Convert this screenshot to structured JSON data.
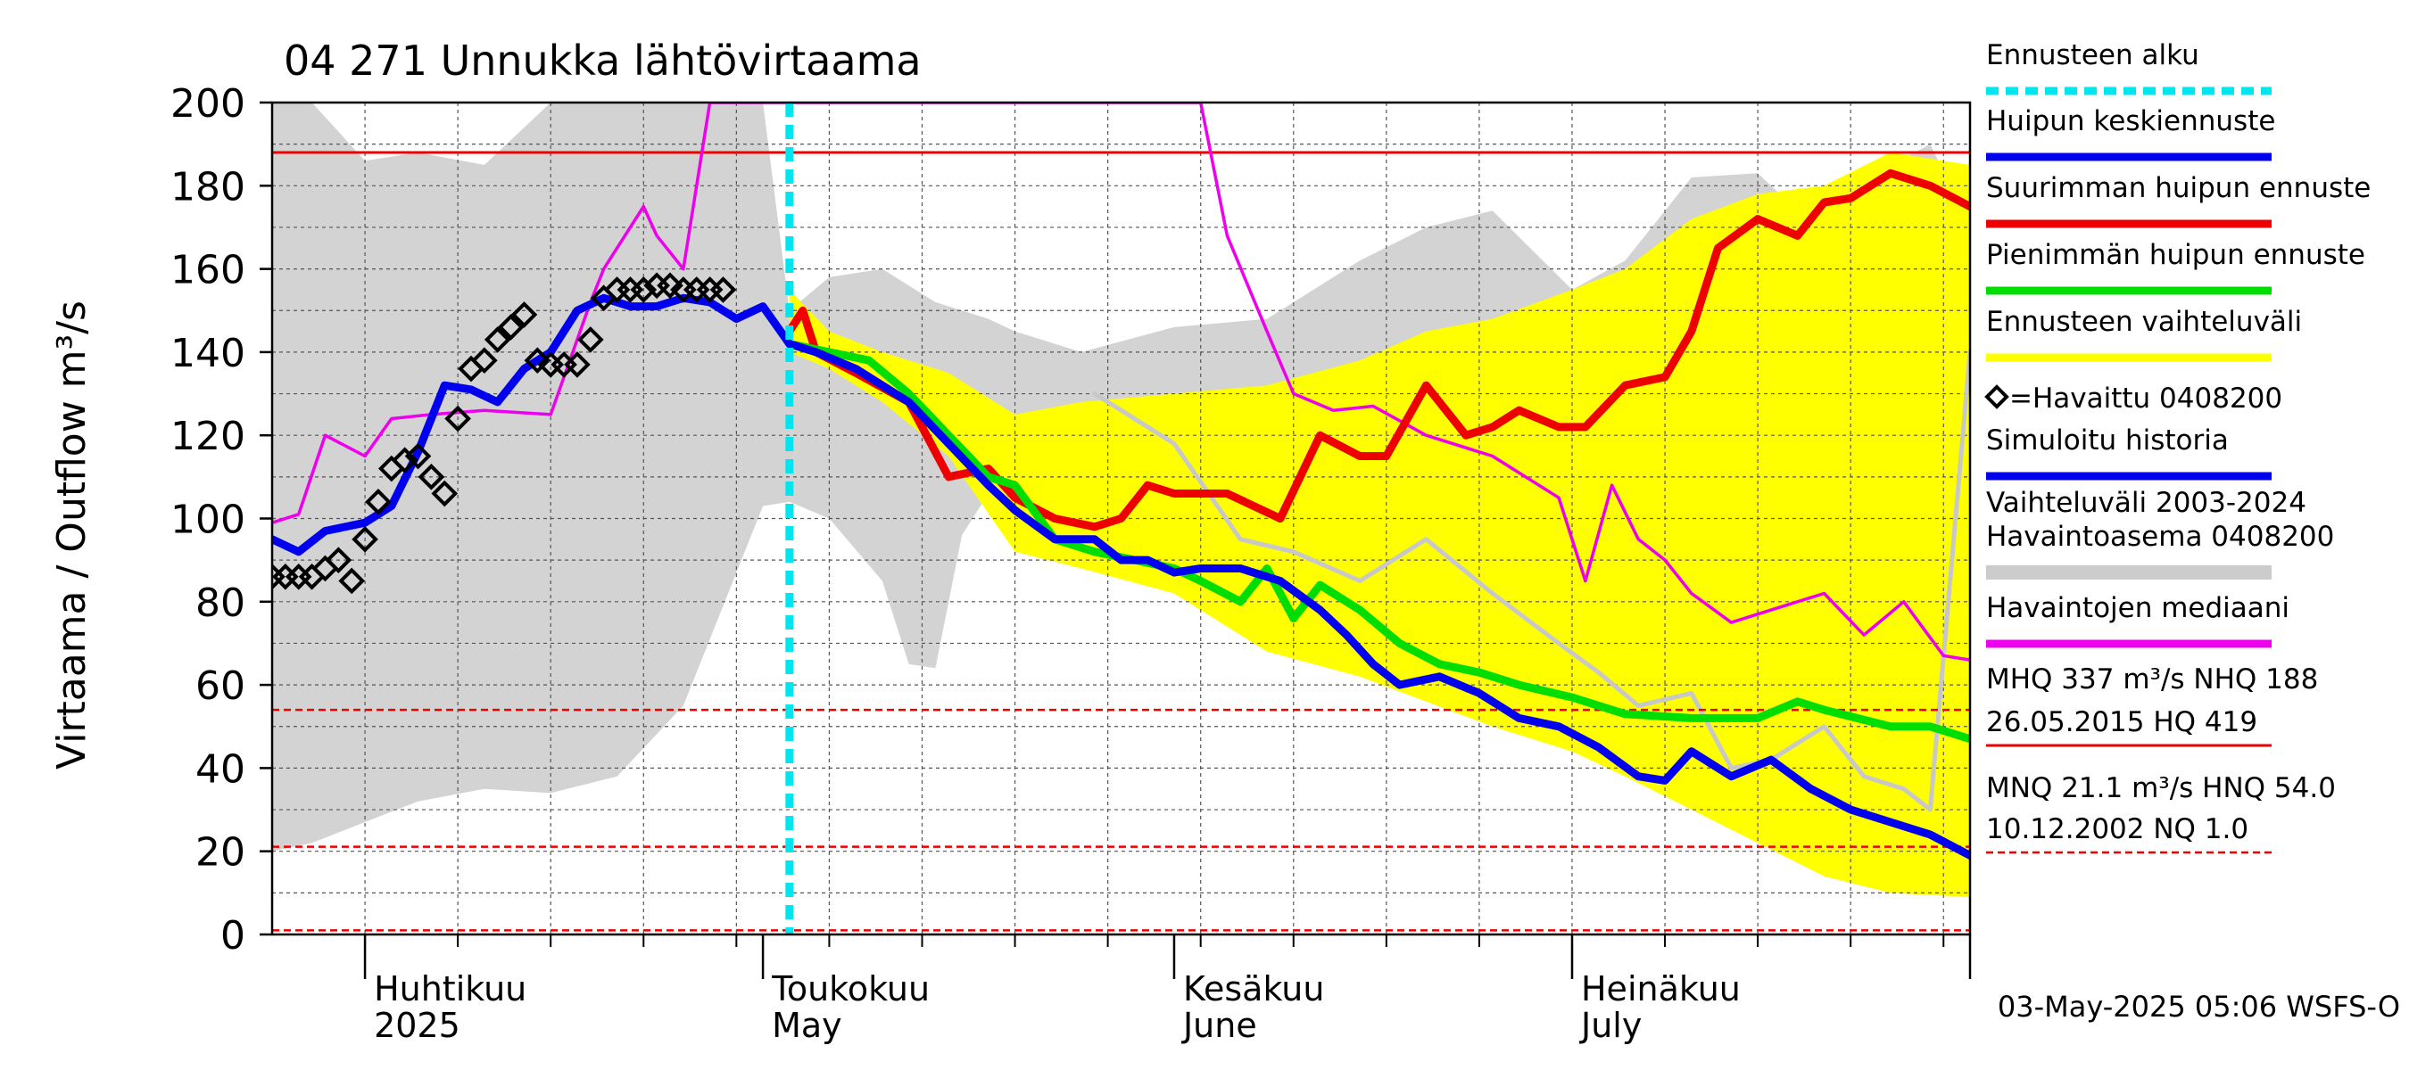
{
  "chart_data": {
    "type": "line",
    "title": "04 271 Unnukka lähtövirtaama",
    "ylabel": "Virtaama / Outflow   m³/s",
    "ylim": [
      0,
      200
    ],
    "yticks": [
      0,
      20,
      40,
      60,
      80,
      100,
      120,
      140,
      160,
      180,
      200
    ],
    "xlim": [
      "2025-03-25",
      "2025-07-31"
    ],
    "forecast_start": "2025-05-03",
    "month_labels": [
      {
        "fi": "Huhtikuu",
        "en": "2025",
        "date": "2025-04-01"
      },
      {
        "fi": "Toukokuu",
        "en": "May",
        "date": "2025-05-01"
      },
      {
        "fi": "Kesäkuu",
        "en": "June",
        "date": "2025-06-01"
      },
      {
        "fi": "Heinäkuu",
        "en": "July",
        "date": "2025-07-01"
      }
    ],
    "hlines": [
      {
        "value": 188,
        "style": "solid"
      },
      {
        "value": 54.0,
        "style": "dashed"
      },
      {
        "value": 21.1,
        "style": "dashed"
      },
      {
        "value": 1.0,
        "style": "dashed"
      }
    ],
    "legend": [
      {
        "label": "Ennusteen alku",
        "color": "#00e5ee",
        "style": "dashed"
      },
      {
        "label": "Huipun keskiennuste",
        "color": "#0000ee",
        "style": "solid"
      },
      {
        "label": "Suurimman huipun ennuste",
        "color": "#ee0000",
        "style": "solid"
      },
      {
        "label": "Pienimmän huipun ennuste",
        "color": "#00dd00",
        "style": "solid"
      },
      {
        "label": "Ennusteen vaihteluväli",
        "color": "#ffff00",
        "style": "solid"
      },
      {
        "label": "=Havaittu 0408200",
        "color": "#000000",
        "style": "marker"
      },
      {
        "label": "Simuloitu historia",
        "color": "#0000ee",
        "style": "solid"
      },
      {
        "label": "Vaihteluväli 2003-2024\n Havaintoasema 0408200",
        "color": "#cccccc",
        "style": "solid"
      },
      {
        "label": "Havaintojen mediaani",
        "color": "#ee00ee",
        "style": "solid"
      }
    ],
    "stats": {
      "line1": "MHQ  337 m³/s NHQ  188",
      "line2": "26.05.2015 HQ  419",
      "line3": "MNQ 21.1 m³/s HNQ 54.0",
      "line4": "10.12.2002 NQ  1.0"
    },
    "timestamp": "03-May-2025 05:06 WSFS-O",
    "series": {
      "hist_range": {
        "x": [
          "2025-03-25",
          "2025-03-28",
          "2025-04-01",
          "2025-04-05",
          "2025-04-10",
          "2025-04-15",
          "2025-04-20",
          "2025-04-25",
          "2025-05-01",
          "2025-05-03",
          "2025-05-06",
          "2025-05-10",
          "2025-05-12",
          "2025-05-14",
          "2025-05-16",
          "2025-05-18",
          "2025-05-20",
          "2025-05-25",
          "2025-06-01",
          "2025-06-08",
          "2025-06-15",
          "2025-06-20",
          "2025-06-25",
          "2025-07-01",
          "2025-07-05",
          "2025-07-10",
          "2025-07-15",
          "2025-07-18",
          "2025-07-20",
          "2025-07-25",
          "2025-07-28",
          "2025-07-31"
        ],
        "low": [
          20,
          22,
          27,
          32,
          35,
          34,
          38,
          55,
          103,
          104,
          100,
          85,
          65,
          64,
          96,
          106,
          110,
          106,
          90,
          76,
          62,
          60,
          63,
          50,
          44,
          36,
          40,
          36,
          28,
          25,
          24,
          44
        ],
        "high": [
          200,
          200,
          186,
          188,
          185,
          200,
          200,
          200,
          200,
          150,
          158,
          160,
          156,
          152,
          150,
          148,
          145,
          140,
          146,
          148,
          162,
          170,
          174,
          155,
          162,
          182,
          183,
          174,
          140,
          185,
          190,
          170
        ]
      },
      "median": {
        "x": [
          "2025-03-25",
          "2025-03-27",
          "2025-03-29",
          "2025-04-01",
          "2025-04-03",
          "2025-04-06",
          "2025-04-10",
          "2025-04-15",
          "2025-04-18",
          "2025-04-19",
          "2025-04-20",
          "2025-04-22",
          "2025-04-23",
          "2025-04-25",
          "2025-04-27",
          "2025-06-03",
          "2025-06-05",
          "2025-06-08",
          "2025-06-10",
          "2025-06-13",
          "2025-06-16",
          "2025-06-20",
          "2025-06-25",
          "2025-06-30",
          "2025-07-02",
          "2025-07-04",
          "2025-07-06",
          "2025-07-08",
          "2025-07-10",
          "2025-07-13",
          "2025-07-16",
          "2025-07-20",
          "2025-07-23",
          "2025-07-26",
          "2025-07-29",
          "2025-07-31"
        ],
        "y": [
          99,
          101,
          120,
          115,
          124,
          125,
          126,
          125,
          152,
          160,
          165,
          175,
          168,
          160,
          200,
          200,
          168,
          145,
          130,
          126,
          127,
          120,
          115,
          105,
          85,
          108,
          95,
          90,
          82,
          75,
          78,
          82,
          72,
          80,
          67,
          66
        ]
      },
      "simulated": {
        "x": [
          "2025-03-25",
          "2025-03-27",
          "2025-03-29",
          "2025-04-01",
          "2025-04-03",
          "2025-04-05",
          "2025-04-07",
          "2025-04-09",
          "2025-04-11",
          "2025-04-13",
          "2025-04-15",
          "2025-04-17",
          "2025-04-19",
          "2025-04-21",
          "2025-04-23",
          "2025-04-25",
          "2025-04-27",
          "2025-04-29",
          "2025-05-01",
          "2025-05-03"
        ],
        "y": [
          95,
          92,
          97,
          99,
          103,
          116,
          132,
          131,
          128,
          136,
          140,
          150,
          153,
          151,
          151,
          153,
          152,
          148,
          151,
          142
        ]
      },
      "observed": {
        "x": [
          "2025-03-25",
          "2025-03-26",
          "2025-03-27",
          "2025-03-28",
          "2025-03-29",
          "2025-03-30",
          "2025-03-31",
          "2025-04-01",
          "2025-04-02",
          "2025-04-03",
          "2025-04-04",
          "2025-04-05",
          "2025-04-06",
          "2025-04-07",
          "2025-04-08",
          "2025-04-09",
          "2025-04-10",
          "2025-04-11",
          "2025-04-12",
          "2025-04-13",
          "2025-04-14",
          "2025-04-15",
          "2025-04-16",
          "2025-04-17",
          "2025-04-18",
          "2025-04-19",
          "2025-04-20",
          "2025-04-21",
          "2025-04-22",
          "2025-04-23",
          "2025-04-24",
          "2025-04-25",
          "2025-04-26",
          "2025-04-27",
          "2025-04-28"
        ],
        "y": [
          86,
          86,
          86,
          86,
          88,
          90,
          85,
          95,
          104,
          112,
          114,
          115,
          110,
          106,
          124,
          136,
          138,
          143,
          146,
          149,
          138,
          137,
          137,
          137,
          143,
          153,
          155,
          155,
          155,
          156,
          156,
          155,
          155,
          155,
          155
        ]
      },
      "forecast_range": {
        "x": [
          "2025-05-03",
          "2025-05-06",
          "2025-05-10",
          "2025-05-15",
          "2025-05-20",
          "2025-05-25",
          "2025-06-01",
          "2025-06-08",
          "2025-06-15",
          "2025-06-20",
          "2025-06-25",
          "2025-07-01",
          "2025-07-05",
          "2025-07-10",
          "2025-07-15",
          "2025-07-20",
          "2025-07-25",
          "2025-07-31"
        ],
        "low": [
          140,
          136,
          128,
          115,
          92,
          88,
          82,
          68,
          62,
          56,
          50,
          44,
          38,
          30,
          22,
          14,
          10,
          9
        ],
        "high": [
          155,
          145,
          140,
          135,
          125,
          128,
          130,
          132,
          138,
          145,
          148,
          155,
          160,
          172,
          178,
          180,
          188,
          185
        ]
      },
      "forecast_mean": {
        "x": [
          "2025-05-03",
          "2025-05-05",
          "2025-05-08",
          "2025-05-12",
          "2025-05-15",
          "2025-05-18",
          "2025-05-20",
          "2025-05-23",
          "2025-05-26",
          "2025-05-28",
          "2025-05-30",
          "2025-06-01",
          "2025-06-03",
          "2025-06-06",
          "2025-06-09",
          "2025-06-12",
          "2025-06-14",
          "2025-06-16",
          "2025-06-18",
          "2025-06-21",
          "2025-06-24",
          "2025-06-27",
          "2025-06-30",
          "2025-07-03",
          "2025-07-06",
          "2025-07-08",
          "2025-07-10",
          "2025-07-13",
          "2025-07-16",
          "2025-07-19",
          "2025-07-22",
          "2025-07-25",
          "2025-07-28",
          "2025-07-31"
        ],
        "y": [
          142,
          140,
          136,
          128,
          118,
          108,
          102,
          95,
          95,
          90,
          90,
          87,
          88,
          88,
          85,
          78,
          72,
          65,
          60,
          62,
          58,
          52,
          50,
          45,
          38,
          37,
          44,
          38,
          42,
          35,
          30,
          27,
          24,
          19
        ]
      },
      "forecast_max": {
        "x": [
          "2025-05-03",
          "2025-05-04",
          "2025-05-05",
          "2025-05-08",
          "2025-05-12",
          "2025-05-15",
          "2025-05-18",
          "2025-05-20",
          "2025-05-23",
          "2025-05-26",
          "2025-05-28",
          "2025-05-30",
          "2025-06-01",
          "2025-06-05",
          "2025-06-09",
          "2025-06-12",
          "2025-06-15",
          "2025-06-17",
          "2025-06-20",
          "2025-06-23",
          "2025-06-25",
          "2025-06-27",
          "2025-06-30",
          "2025-07-02",
          "2025-07-05",
          "2025-07-08",
          "2025-07-10",
          "2025-07-12",
          "2025-07-15",
          "2025-07-18",
          "2025-07-20",
          "2025-07-22",
          "2025-07-25",
          "2025-07-28",
          "2025-07-31"
        ],
        "y": [
          145,
          150,
          140,
          135,
          128,
          110,
          112,
          105,
          100,
          98,
          100,
          108,
          106,
          106,
          100,
          120,
          115,
          115,
          132,
          120,
          122,
          126,
          122,
          122,
          132,
          134,
          145,
          165,
          172,
          168,
          176,
          177,
          183,
          180,
          175
        ]
      },
      "forecast_min": {
        "x": [
          "2025-05-03",
          "2025-05-06",
          "2025-05-09",
          "2025-05-12",
          "2025-05-15",
          "2025-05-18",
          "2025-05-20",
          "2025-05-23",
          "2025-05-26",
          "2025-05-29",
          "2025-06-01",
          "2025-06-03",
          "2025-06-06",
          "2025-06-08",
          "2025-06-10",
          "2025-06-12",
          "2025-06-15",
          "2025-06-18",
          "2025-06-21",
          "2025-06-24",
          "2025-06-27",
          "2025-07-01",
          "2025-07-05",
          "2025-07-10",
          "2025-07-15",
          "2025-07-18",
          "2025-07-20",
          "2025-07-25",
          "2025-07-28",
          "2025-07-31"
        ],
        "y": [
          142,
          140,
          138,
          130,
          120,
          110,
          108,
          95,
          92,
          90,
          88,
          85,
          80,
          88,
          76,
          84,
          78,
          70,
          65,
          63,
          60,
          57,
          53,
          52,
          52,
          56,
          54,
          50,
          50,
          47
        ]
      },
      "hist_extra_gray": {
        "x": [
          "2025-05-26",
          "2025-06-01",
          "2025-06-06",
          "2025-06-10",
          "2025-06-15",
          "2025-06-20",
          "2025-06-25",
          "2025-06-30",
          "2025-07-03",
          "2025-07-06",
          "2025-07-10",
          "2025-07-13",
          "2025-07-16",
          "2025-07-20",
          "2025-07-23",
          "2025-07-26",
          "2025-07-28",
          "2025-07-31"
        ],
        "y": [
          130,
          118,
          95,
          92,
          85,
          95,
          82,
          70,
          63,
          55,
          58,
          40,
          42,
          50,
          38,
          35,
          30,
          140
        ]
      }
    }
  }
}
